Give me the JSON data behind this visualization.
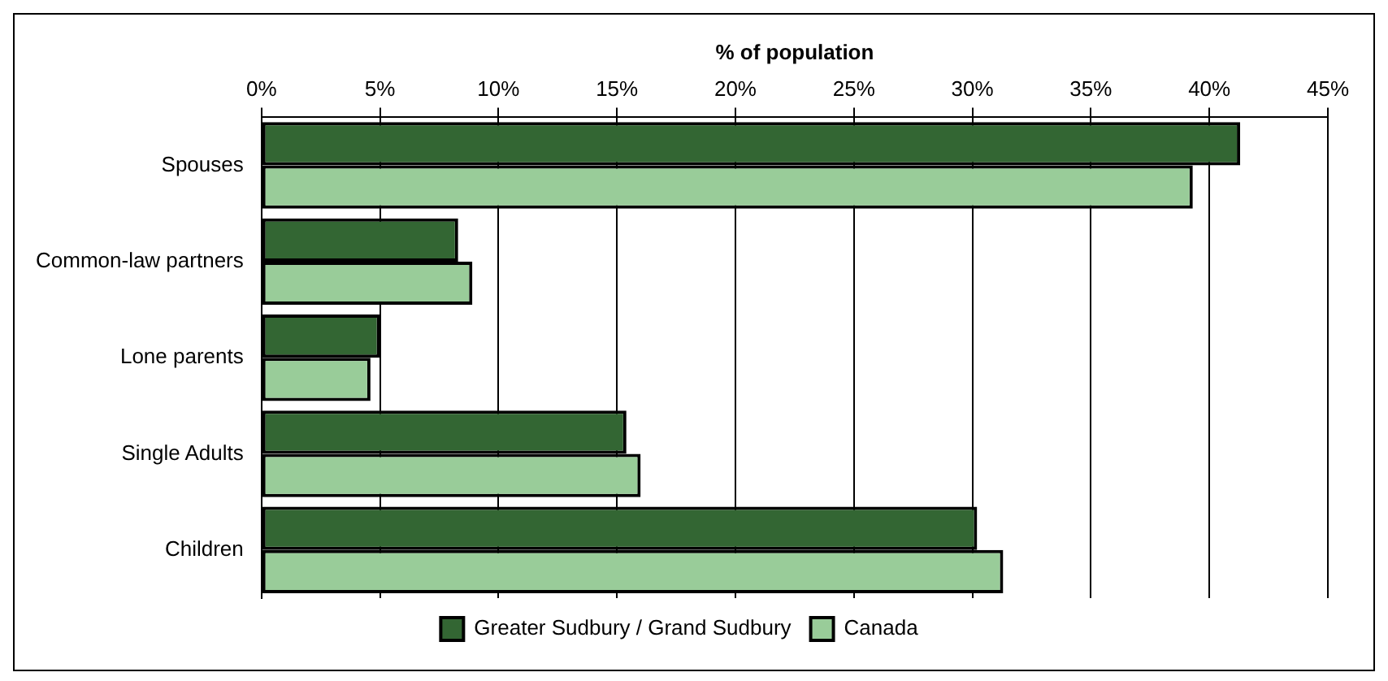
{
  "chart_data": {
    "type": "bar",
    "orientation": "horizontal",
    "xlabel": "% of population",
    "categories": [
      "Spouses",
      "Common-law partners",
      "Lone parents",
      "Single Adults",
      "Children"
    ],
    "series": [
      {
        "name": "Greater Sudbury / Grand Sudbury",
        "color": "#336633",
        "values": [
          41.3,
          8.3,
          5.0,
          15.4,
          30.2
        ]
      },
      {
        "name": "Canada",
        "color": "#99cc99",
        "values": [
          39.3,
          8.9,
          4.6,
          16.0,
          31.3
        ]
      }
    ],
    "xlim": [
      0,
      45
    ],
    "xticks": [
      {
        "value": 0,
        "label": "0%"
      },
      {
        "value": 5,
        "label": "5%"
      },
      {
        "value": 10,
        "label": "10%"
      },
      {
        "value": 15,
        "label": "15%"
      },
      {
        "value": 20,
        "label": "20%"
      },
      {
        "value": 25,
        "label": "25%"
      },
      {
        "value": 30,
        "label": "30%"
      },
      {
        "value": 35,
        "label": "35%"
      },
      {
        "value": 40,
        "label": "40%"
      },
      {
        "value": 45,
        "label": "45%"
      }
    ],
    "grid": "x",
    "legend": "bottom"
  }
}
